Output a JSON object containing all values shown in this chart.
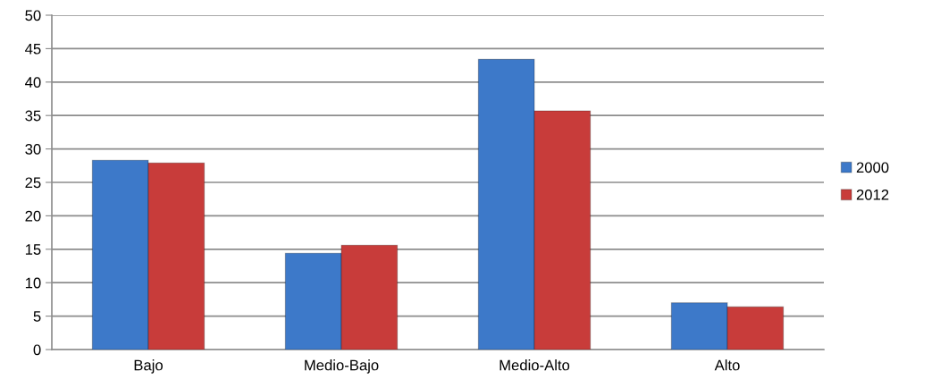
{
  "chart_data": {
    "type": "bar",
    "categories": [
      "Bajo",
      "Medio-Bajo",
      "Medio-Alto",
      "Alto"
    ],
    "series": [
      {
        "name": "2000",
        "color": "#3d79c9",
        "values": [
          28.3,
          14.4,
          43.4,
          7.0
        ]
      },
      {
        "name": "2012",
        "color": "#c83c3a",
        "values": [
          27.9,
          15.6,
          35.7,
          6.4
        ]
      }
    ],
    "ylim": [
      0,
      50
    ],
    "yticks": [
      0,
      5,
      10,
      15,
      20,
      25,
      30,
      35,
      40,
      45,
      50
    ],
    "grid": "y",
    "legend": "right"
  }
}
